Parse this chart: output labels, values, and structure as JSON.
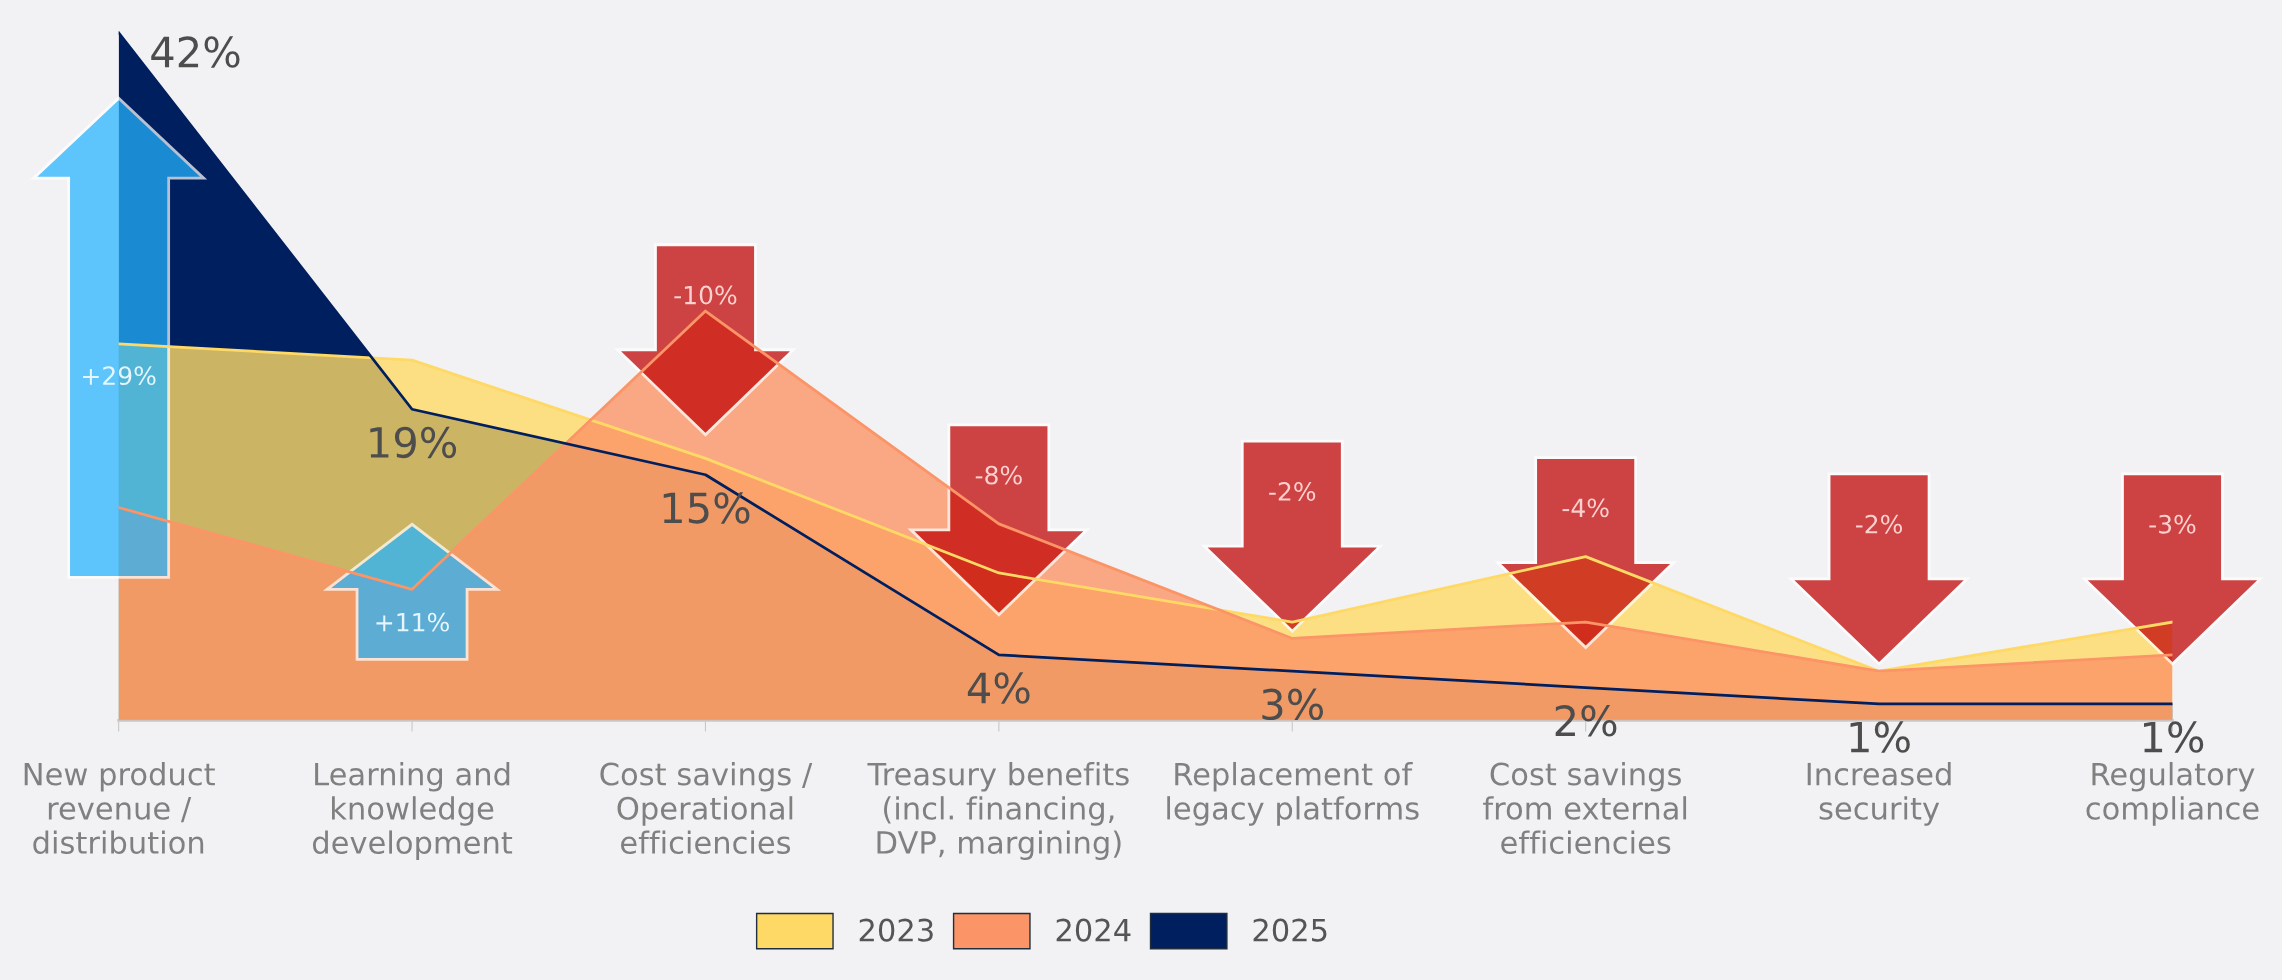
{
  "chart_data": {
    "type": "area",
    "categories": [
      "New product\nrevenue /\ndistribution",
      "Learning and\nknowledge\ndevelopment",
      "Cost savings /\nOperational\nefficiencies",
      "Treasury benefits\n(incl. financing,\nDVP, margining)",
      "Replacement of\nlegacy platforms",
      "Cost savings\nfrom external\nefficiencies",
      "Increased\nsecurity",
      "Regulatory\ncompliance"
    ],
    "series": [
      {
        "name": "2023",
        "color": "#ffd966",
        "values": [
          23,
          22,
          16,
          9,
          6,
          10,
          3,
          6
        ]
      },
      {
        "name": "2024",
        "color": "#fb9466",
        "values": [
          13,
          8,
          25,
          12,
          5,
          6,
          3,
          4
        ]
      },
      {
        "name": "2025",
        "color": "#001f5f",
        "values": [
          42,
          19,
          15,
          4,
          3,
          2,
          1,
          1
        ],
        "value_labels": [
          "42%",
          "19%",
          "15%",
          "4%",
          "3%",
          "2%",
          "1%",
          "1%"
        ]
      }
    ],
    "annotations": [
      "+29%",
      "+11%",
      "-10%",
      "-8%",
      "-2%",
      "-4%",
      "-2%",
      "-3%"
    ],
    "ylim": [
      0,
      44
    ],
    "tick_labels": "x",
    "grid": false,
    "legend": "bottom"
  }
}
